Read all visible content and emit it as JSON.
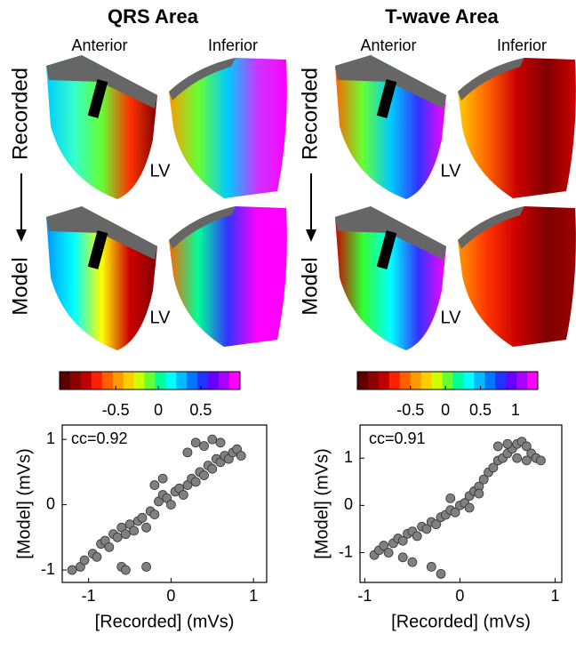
{
  "row_labels": [
    "Recorded",
    "Model"
  ],
  "panels": [
    {
      "title": "QRS Area",
      "views": [
        "Anterior",
        "Inferior"
      ],
      "chamber": "LV"
    },
    {
      "title": "T-wave Area",
      "views": [
        "Anterior",
        "Inferior"
      ],
      "chamber": "LV"
    }
  ],
  "chart_data": [
    {
      "type": "colorbar",
      "colors": [
        "#5a0000",
        "#8b0000",
        "#c00000",
        "#ff2000",
        "#ff6000",
        "#ff9900",
        "#ffcc00",
        "#ccff00",
        "#66ff33",
        "#00ff99",
        "#00ffff",
        "#00bbff",
        "#0077ff",
        "#2233ff",
        "#6600ff",
        "#aa00ff",
        "#ff00ff"
      ],
      "xlim": [
        -1.16,
        0.96
      ],
      "xticks": [
        -0.5,
        0,
        0.5
      ]
    },
    {
      "type": "colorbar",
      "colors": [
        "#5a0000",
        "#8b0000",
        "#c00000",
        "#ff2000",
        "#ff6000",
        "#ff9900",
        "#ffcc00",
        "#ccff00",
        "#66ff33",
        "#00ff99",
        "#00ffff",
        "#00bbff",
        "#0077ff",
        "#2233ff",
        "#6600ff",
        "#aa00ff",
        "#ff00ff"
      ],
      "xlim": [
        -1.26,
        1.32
      ],
      "xticks": [
        -0.5,
        0,
        0.5,
        1
      ]
    },
    {
      "type": "scatter",
      "annotation": "cc=0.92",
      "xlabel": "[Recorded] (mVs)",
      "ylabel": "[Model] (mVs)",
      "xlim": [
        -1.32,
        1.16
      ],
      "ylim": [
        -1.19,
        1.22
      ],
      "xticks": [
        -1,
        0,
        1
      ],
      "yticks": [
        -1,
        0,
        1
      ],
      "color": "#808080",
      "x": [
        -1.2,
        -1.1,
        -1.05,
        -0.95,
        -0.9,
        -0.85,
        -0.8,
        -0.75,
        -0.7,
        -0.65,
        -0.6,
        -0.55,
        -0.5,
        -0.45,
        -0.4,
        -0.35,
        -0.3,
        -0.25,
        -0.2,
        -0.15,
        -0.1,
        -0.05,
        0,
        0.05,
        0.1,
        0.15,
        0.2,
        0.25,
        0.3,
        0.35,
        0.4,
        0.45,
        0.5,
        0.55,
        0.6,
        0.65,
        0.7,
        0.75,
        0.8,
        0.85,
        0.3,
        0.4,
        0.5,
        0.6,
        0.2,
        -0.6,
        -0.3,
        -0.55,
        -0.1,
        -0.2
      ],
      "y": [
        -1.0,
        -0.95,
        -0.85,
        -0.75,
        -0.8,
        -0.6,
        -0.55,
        -0.65,
        -0.45,
        -0.5,
        -0.35,
        -0.45,
        -0.3,
        -0.4,
        -0.25,
        -0.2,
        -0.35,
        -0.1,
        -0.15,
        0.05,
        0.15,
        0.1,
        0.0,
        0.2,
        0.25,
        0.15,
        0.3,
        0.4,
        0.35,
        0.5,
        0.45,
        0.6,
        0.55,
        0.7,
        0.65,
        0.75,
        0.7,
        0.8,
        0.85,
        0.75,
        0.95,
        0.9,
        1.0,
        0.95,
        0.8,
        -0.95,
        -0.95,
        -1.0,
        0.4,
        0.3
      ]
    },
    {
      "type": "scatter",
      "annotation": "cc=0.91",
      "xlabel": "[Recorded] (mVs)",
      "ylabel": "[Model] (mVs)",
      "xlim": [
        -1.05,
        1.07
      ],
      "ylim": [
        -1.63,
        1.7
      ],
      "xticks": [
        -1,
        0,
        1
      ],
      "yticks": [
        -1,
        0,
        1
      ],
      "color": "#808080",
      "x": [
        -0.9,
        -0.85,
        -0.8,
        -0.75,
        -0.7,
        -0.65,
        -0.6,
        -0.55,
        -0.5,
        -0.45,
        -0.4,
        -0.35,
        -0.3,
        -0.25,
        -0.2,
        -0.15,
        -0.1,
        -0.05,
        0,
        0.05,
        0.1,
        0.15,
        0.2,
        0.25,
        0.3,
        0.35,
        0.4,
        0.45,
        0.5,
        0.55,
        0.6,
        0.65,
        0.7,
        0.75,
        0.8,
        0.85,
        0.6,
        0.5,
        0.4,
        0.7,
        -0.5,
        -0.3,
        -0.2,
        -0.6,
        0.1,
        -0.1,
        0.2
      ],
      "y": [
        -1.05,
        -0.95,
        -0.85,
        -1.0,
        -0.8,
        -0.7,
        -0.75,
        -0.6,
        -0.55,
        -0.65,
        -0.45,
        -0.5,
        -0.35,
        -0.4,
        -0.25,
        -0.2,
        -0.1,
        -0.15,
        0.0,
        0.05,
        0.2,
        0.3,
        0.4,
        0.55,
        0.7,
        0.8,
        0.95,
        1.0,
        1.1,
        1.2,
        1.3,
        1.35,
        1.25,
        1.1,
        1.0,
        0.95,
        1.0,
        1.3,
        1.25,
        0.95,
        -1.2,
        -1.3,
        -1.45,
        -1.1,
        -0.05,
        0.15,
        0.25
      ]
    }
  ]
}
